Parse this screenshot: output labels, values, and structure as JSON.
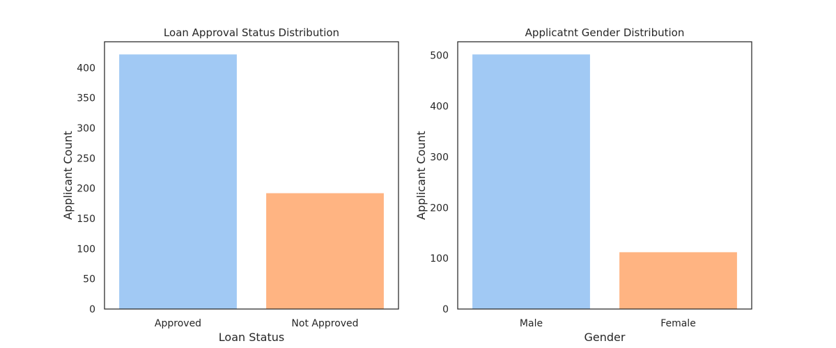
{
  "chart_data": [
    {
      "type": "bar",
      "title": "Loan Approval Status Distribution",
      "xlabel": "Loan Status",
      "ylabel": "Applicant Count",
      "categories": [
        "Approved",
        "Not Approved"
      ],
      "values": [
        422,
        192
      ],
      "ylim": [
        0,
        443
      ],
      "yticks": [
        0,
        50,
        100,
        150,
        200,
        250,
        300,
        350,
        400
      ],
      "colors": [
        "#a1c9f4",
        "#ffb482"
      ],
      "grid": false
    },
    {
      "type": "bar",
      "title": "Applicatnt Gender Distribution",
      "xlabel": "Gender",
      "ylabel": "Applicant Count",
      "categories": [
        "Male",
        "Female"
      ],
      "values": [
        502,
        112
      ],
      "ylim": [
        0,
        527
      ],
      "yticks": [
        0,
        100,
        200,
        300,
        400,
        500
      ],
      "colors": [
        "#a1c9f4",
        "#ffb482"
      ],
      "grid": false
    }
  ]
}
